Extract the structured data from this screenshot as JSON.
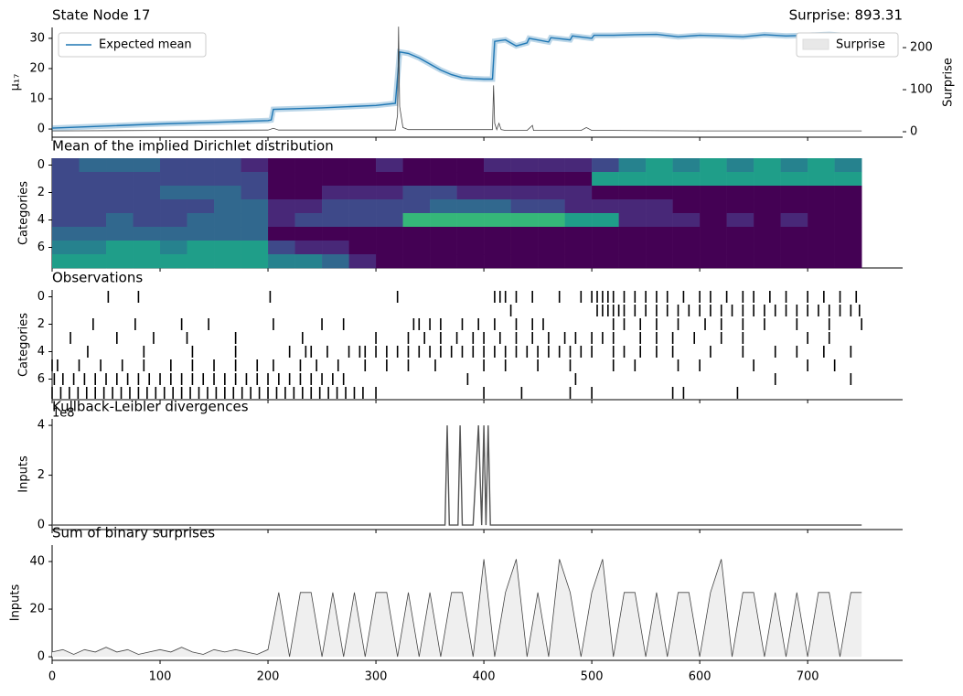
{
  "chart_data": [
    {
      "type": "line",
      "title": "State Node 17",
      "right_title": "Surprise: 893.31",
      "ylabel": "μ₁₇",
      "y2label": "Surprise",
      "xlim": [
        0,
        788
      ],
      "ylim": [
        -2.7,
        33.6
      ],
      "yticks": [
        0,
        10,
        20,
        30
      ],
      "y2lim": [
        -13,
        248
      ],
      "y2ticks": [
        0,
        100,
        200
      ],
      "series": [
        {
          "name": "Expected mean",
          "color": "#1f77b4",
          "legend": "upper left",
          "x": [
            0,
            50,
            100,
            150,
            200,
            203,
            205,
            250,
            300,
            318,
            322,
            330,
            340,
            350,
            360,
            370,
            380,
            390,
            400,
            408,
            410,
            420,
            430,
            440,
            442,
            460,
            462,
            480,
            482,
            500,
            502,
            520,
            540,
            560,
            580,
            600,
            620,
            640,
            660,
            680,
            700,
            720,
            740,
            750
          ],
          "values": [
            0.3,
            1,
            1.7,
            2.2,
            2.8,
            3,
            6.5,
            7,
            7.8,
            8.5,
            25.5,
            25,
            23.5,
            21.5,
            19.5,
            18,
            17,
            16.7,
            16.5,
            16.5,
            29,
            29.5,
            27.5,
            28.5,
            30,
            28.8,
            30.2,
            29.5,
            30.8,
            30,
            31,
            31,
            31.2,
            31.3,
            30.5,
            31,
            30.8,
            30.5,
            31.2,
            30.8,
            31,
            31.3,
            30.8,
            30.5
          ]
        },
        {
          "name": "Surprise",
          "color": "#444444",
          "fill": "#e8e8e8",
          "legend": "upper right",
          "axis": "y2",
          "x": [
            0,
            100,
            200,
            205,
            210,
            318,
            320,
            321,
            322,
            325,
            330,
            405,
            408,
            409,
            410,
            412,
            414,
            416,
            420,
            440,
            445,
            446,
            450,
            490,
            495,
            500,
            520,
            600,
            750
          ],
          "values": [
            2,
            3,
            4,
            8,
            4,
            4,
            40,
            250,
            60,
            10,
            5,
            5,
            5,
            110,
            20,
            5,
            20,
            5,
            3,
            3,
            15,
            3,
            3,
            3,
            10,
            3,
            3,
            2,
            2
          ]
        }
      ]
    },
    {
      "type": "heatmap",
      "title": "Mean of the implied Dirichlet distribution",
      "ylabel": "Categories",
      "colormap": "viridis",
      "xbins": [
        0,
        25,
        50,
        75,
        100,
        125,
        150,
        175,
        200,
        225,
        250,
        275,
        300,
        325,
        350,
        375,
        400,
        425,
        450,
        475,
        500,
        525,
        550,
        575,
        600,
        625,
        650,
        675,
        700,
        725,
        750
      ],
      "ylim": [
        7.5,
        -0.5
      ],
      "yticks": [
        0,
        2,
        4,
        6
      ],
      "values": [
        [
          0.25,
          0.3,
          0.35,
          0.3,
          0.25,
          0.2,
          0.2,
          0.15,
          0.05,
          0.05,
          0.05,
          0.05,
          0.15,
          0.05,
          0.05,
          0.05,
          0.1,
          0.15,
          0.15,
          0.15,
          0.2,
          0.45,
          0.5,
          0.45,
          0.5,
          0.45,
          0.5,
          0.45,
          0.5,
          0.45
        ],
        [
          0.2,
          0.25,
          0.25,
          0.2,
          0.2,
          0.2,
          0.2,
          0.2,
          0.02,
          0.02,
          0.02,
          0.02,
          0.02,
          0.02,
          0.02,
          0.02,
          0.05,
          0.05,
          0.05,
          0.05,
          0.5,
          0.6,
          0.6,
          0.55,
          0.6,
          0.6,
          0.55,
          0.6,
          0.6,
          0.55
        ],
        [
          0.2,
          0.2,
          0.25,
          0.25,
          0.3,
          0.3,
          0.3,
          0.25,
          0.05,
          0.05,
          0.1,
          0.15,
          0.15,
          0.2,
          0.2,
          0.15,
          0.15,
          0.1,
          0.1,
          0.1,
          0.05,
          0.05,
          0.05,
          0.05,
          0.05,
          0.05,
          0.05,
          0.05,
          0.05,
          0.05
        ],
        [
          0.25,
          0.2,
          0.2,
          0.25,
          0.2,
          0.25,
          0.3,
          0.35,
          0.1,
          0.15,
          0.2,
          0.2,
          0.25,
          0.25,
          0.3,
          0.3,
          0.35,
          0.2,
          0.2,
          0.15,
          0.1,
          0.1,
          0.1,
          0.05,
          0.05,
          0.05,
          0.05,
          0.05,
          0.05,
          0.05
        ],
        [
          0.25,
          0.25,
          0.3,
          0.25,
          0.25,
          0.3,
          0.3,
          0.35,
          0.15,
          0.2,
          0.2,
          0.2,
          0.25,
          0.65,
          0.7,
          0.7,
          0.7,
          0.7,
          0.65,
          0.6,
          0.55,
          0.1,
          0.1,
          0.1,
          0.05,
          0.1,
          0.05,
          0.1,
          0.05,
          0.05
        ],
        [
          0.3,
          0.3,
          0.3,
          0.3,
          0.35,
          0.3,
          0.3,
          0.3,
          0.05,
          0.05,
          0.05,
          0.05,
          0.05,
          0.05,
          0.05,
          0.05,
          0.05,
          0.05,
          0.05,
          0.05,
          0.05,
          0.05,
          0.05,
          0.05,
          0.05,
          0.05,
          0.05,
          0.05,
          0.05,
          0.05
        ],
        [
          0.45,
          0.45,
          0.5,
          0.5,
          0.45,
          0.5,
          0.55,
          0.5,
          0.2,
          0.15,
          0.1,
          0.05,
          0.05,
          0.05,
          0.05,
          0.05,
          0.05,
          0.05,
          0.05,
          0.05,
          0.05,
          0.05,
          0.05,
          0.05,
          0.05,
          0.05,
          0.05,
          0.05,
          0.05,
          0.05
        ],
        [
          0.5,
          0.55,
          0.5,
          0.5,
          0.55,
          0.5,
          0.5,
          0.5,
          0.45,
          0.4,
          0.3,
          0.1,
          0.05,
          0.05,
          0.05,
          0.05,
          0.05,
          0.05,
          0.05,
          0.05,
          0.05,
          0.05,
          0.05,
          0.05,
          0.05,
          0.05,
          0.05,
          0.05,
          0.05,
          0.05
        ]
      ]
    },
    {
      "type": "events",
      "title": "Observations",
      "ylabel": "Categories",
      "color": "#000000",
      "ylim": [
        7.5,
        -0.5
      ],
      "yticks": [
        0,
        2,
        4,
        6
      ],
      "events": [
        [
          52,
          80,
          202,
          320,
          410,
          415,
          420,
          430,
          445,
          470,
          490,
          500,
          505,
          510,
          515,
          520,
          530,
          540,
          550,
          560,
          570,
          585,
          600,
          610,
          625,
          640,
          650,
          665,
          680,
          700,
          715,
          730,
          745
        ],
        [
          425,
          505,
          510,
          515,
          520,
          525,
          530,
          540,
          550,
          560,
          570,
          580,
          590,
          600,
          610,
          620,
          630,
          640,
          650,
          660,
          670,
          680,
          690,
          700,
          710,
          720,
          730,
          740,
          748
        ],
        [
          38,
          77,
          120,
          145,
          205,
          250,
          270,
          335,
          340,
          350,
          360,
          380,
          395,
          410,
          430,
          445,
          455,
          520,
          530,
          545,
          560,
          580,
          605,
          620,
          640,
          660,
          690,
          720,
          750
        ],
        [
          17,
          60,
          94,
          125,
          170,
          232,
          300,
          330,
          345,
          360,
          375,
          390,
          400,
          415,
          430,
          445,
          460,
          475,
          485,
          500,
          510,
          520,
          545,
          560,
          575,
          595,
          620,
          640,
          700,
          720
        ],
        [
          33,
          85,
          130,
          170,
          220,
          235,
          240,
          255,
          275,
          285,
          290,
          300,
          310,
          320,
          330,
          340,
          350,
          360,
          370,
          380,
          390,
          400,
          410,
          420,
          430,
          440,
          450,
          460,
          470,
          480,
          490,
          500,
          520,
          530,
          545,
          560,
          575,
          610,
          640,
          670,
          690,
          715,
          740
        ],
        [
          0,
          5,
          25,
          45,
          65,
          85,
          110,
          130,
          150,
          170,
          190,
          205,
          230,
          245,
          265,
          290,
          310,
          330,
          355,
          400,
          420,
          450,
          480,
          520,
          540,
          580,
          600,
          650,
          700,
          725
        ],
        [
          2,
          10,
          20,
          30,
          40,
          50,
          60,
          70,
          80,
          90,
          100,
          110,
          120,
          130,
          140,
          150,
          160,
          170,
          180,
          190,
          200,
          210,
          220,
          230,
          240,
          250,
          260,
          270,
          385,
          485,
          670,
          740
        ],
        [
          0,
          8,
          16,
          24,
          32,
          40,
          48,
          56,
          64,
          72,
          80,
          88,
          96,
          104,
          112,
          120,
          128,
          136,
          144,
          152,
          160,
          168,
          176,
          184,
          192,
          200,
          208,
          216,
          224,
          232,
          240,
          248,
          256,
          264,
          272,
          280,
          288,
          300,
          400,
          435,
          480,
          500,
          575,
          585,
          635
        ]
      ]
    },
    {
      "type": "line",
      "title": "Kullback-Leibler divergences",
      "offset_text": "1e8",
      "ylabel": "Inputs",
      "ylim": [
        -0.18,
        4.26
      ],
      "yticks": [
        0,
        2,
        4
      ],
      "series": [
        {
          "color": "#555555",
          "x": [
            0,
            360,
            364,
            366,
            368,
            376,
            378,
            380,
            382,
            390,
            395,
            398,
            400,
            402,
            404,
            406,
            408,
            750
          ],
          "values": [
            0,
            0,
            0,
            4,
            0,
            0,
            4,
            0,
            0,
            0,
            4,
            0,
            4,
            0,
            4,
            0,
            0,
            0
          ]
        }
      ]
    },
    {
      "type": "area",
      "title": "Sum of binary surprises",
      "ylabel": "Inputs",
      "color": "#444444",
      "fill": "#efefef",
      "ylim": [
        -1.5,
        46.9
      ],
      "yticks": [
        0,
        20,
        40
      ],
      "xticks": [
        0,
        100,
        200,
        300,
        400,
        500,
        600,
        700
      ],
      "x": [
        0,
        10,
        20,
        30,
        40,
        50,
        60,
        70,
        80,
        90,
        100,
        110,
        120,
        130,
        140,
        150,
        160,
        170,
        180,
        190,
        200,
        210,
        220,
        230,
        240,
        250,
        260,
        270,
        280,
        290,
        300,
        310,
        320,
        330,
        340,
        350,
        360,
        370,
        380,
        390,
        400,
        410,
        420,
        430,
        440,
        450,
        460,
        470,
        480,
        490,
        500,
        510,
        520,
        530,
        540,
        550,
        560,
        570,
        580,
        590,
        600,
        610,
        620,
        630,
        640,
        650,
        660,
        670,
        680,
        690,
        700,
        710,
        720,
        730,
        740,
        750
      ],
      "values": [
        2,
        3,
        1,
        3,
        2,
        4,
        2,
        3,
        1,
        2,
        3,
        2,
        4,
        2,
        1,
        3,
        2,
        3,
        2,
        1,
        3,
        27,
        0,
        27,
        27,
        0,
        27,
        0,
        27,
        0,
        27,
        27,
        0,
        27,
        0,
        27,
        0,
        27,
        27,
        0,
        41,
        0,
        27,
        41,
        0,
        27,
        0,
        41,
        27,
        0,
        27,
        41,
        0,
        27,
        27,
        0,
        27,
        0,
        27,
        27,
        0,
        27,
        41,
        0,
        27,
        27,
        0,
        27,
        0,
        27,
        0,
        27,
        27,
        0,
        27,
        27
      ]
    }
  ]
}
